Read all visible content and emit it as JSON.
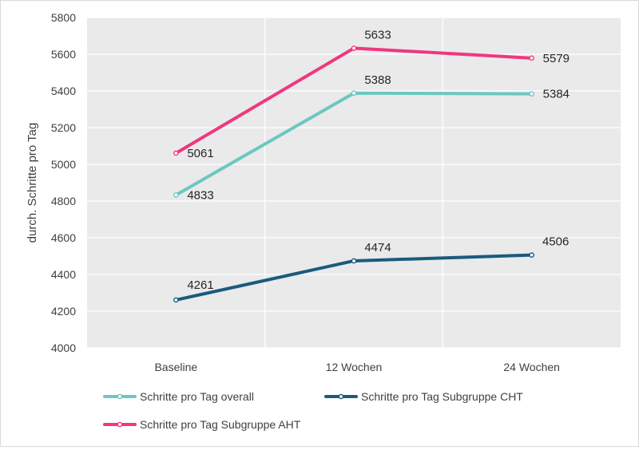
{
  "chart_data": {
    "type": "line",
    "title": "",
    "xlabel": "",
    "ylabel": "durch. Schritte pro Tag",
    "categories": [
      "Baseline",
      "12 Wochen",
      "24 Wochen"
    ],
    "ylim": [
      4000,
      5800
    ],
    "yticks": [
      4000,
      4200,
      4400,
      4600,
      4800,
      5000,
      5200,
      5400,
      5600,
      5800
    ],
    "grid": true,
    "legend_position": "bottom",
    "series": [
      {
        "name": "Schritte pro Tag overall",
        "values": [
          4833,
          5388,
          5384
        ],
        "labels": [
          "4833",
          "5388",
          "5384"
        ],
        "color": "#6cc7c1"
      },
      {
        "name": "Schritte pro Tag Subgruppe CHT",
        "values": [
          4261,
          4474,
          4506
        ],
        "labels": [
          "4261",
          "4474",
          "4506"
        ],
        "color": "#1b5a7d"
      },
      {
        "name": "Schritte pro Tag Subgruppe AHT",
        "values": [
          5061,
          5633,
          5579
        ],
        "labels": [
          "5061",
          "5633",
          "5579"
        ],
        "color": "#f0377f"
      }
    ]
  }
}
